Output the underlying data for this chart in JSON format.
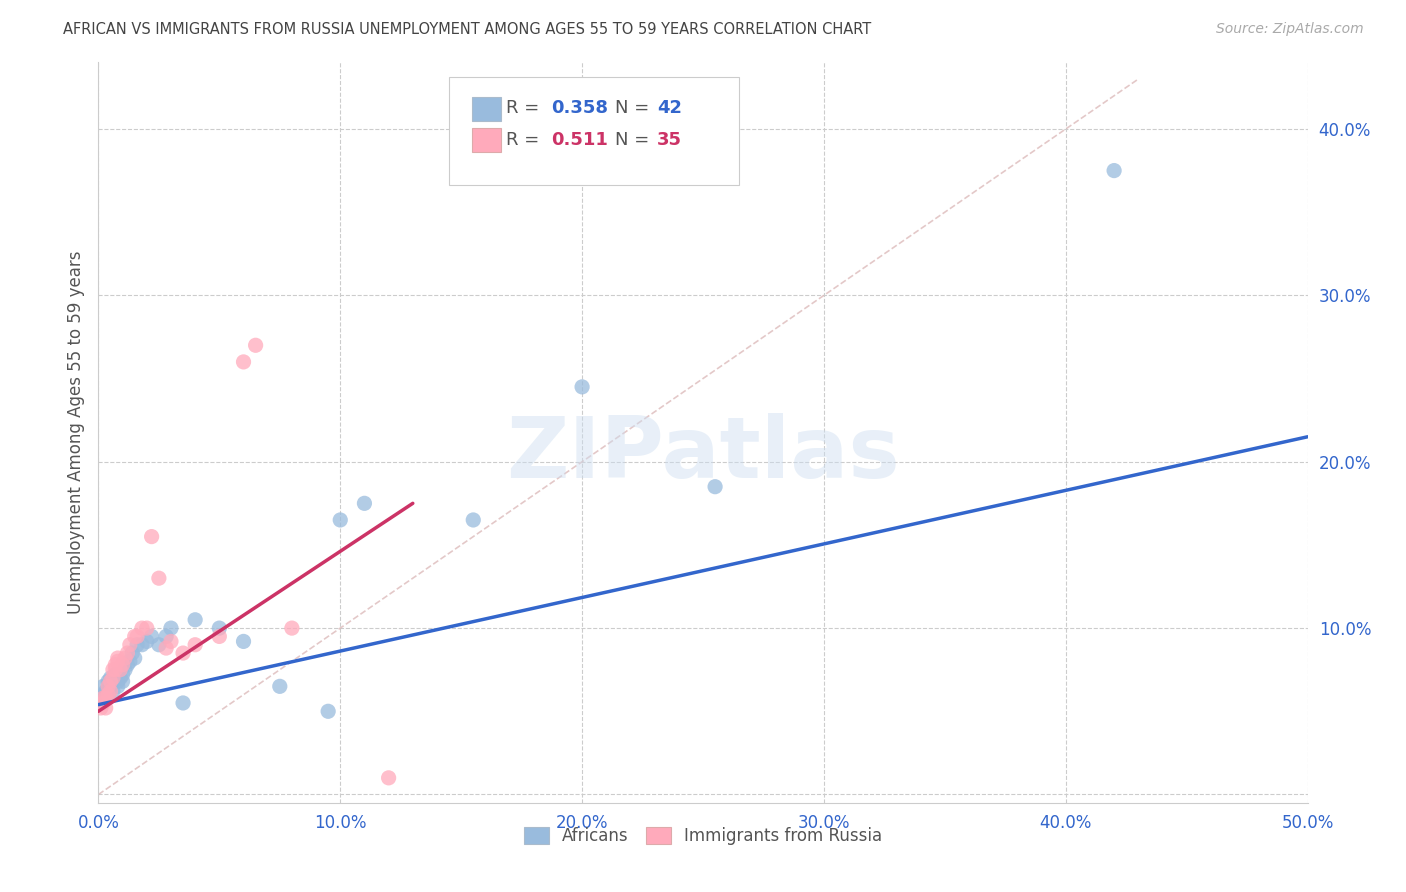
{
  "title": "AFRICAN VS IMMIGRANTS FROM RUSSIA UNEMPLOYMENT AMONG AGES 55 TO 59 YEARS CORRELATION CHART",
  "source": "Source: ZipAtlas.com",
  "ylabel": "Unemployment Among Ages 55 to 59 years",
  "xlim": [
    0.0,
    0.5
  ],
  "ylim": [
    -0.005,
    0.44
  ],
  "xticks": [
    0.0,
    0.1,
    0.2,
    0.3,
    0.4,
    0.5
  ],
  "yticks": [
    0.0,
    0.1,
    0.2,
    0.3,
    0.4
  ],
  "xticklabels": [
    "0.0%",
    "10.0%",
    "20.0%",
    "30.0%",
    "40.0%",
    "50.0%"
  ],
  "yticklabels": [
    "",
    "10.0%",
    "20.0%",
    "30.0%",
    "40.0%"
  ],
  "blue_scatter_color": "#99BBDD",
  "pink_scatter_color": "#FFAABB",
  "blue_line_color": "#3366CC",
  "pink_line_color": "#CC3366",
  "diag_color": "#DDBBBB",
  "watermark_text": "ZIPatlas",
  "background_color": "#FFFFFF",
  "grid_color": "#CCCCCC",
  "legend_r1": "0.358",
  "legend_n1": "42",
  "legend_r2": "0.511",
  "legend_n2": "35",
  "blue_line_x0": 0.0,
  "blue_line_y0": 0.054,
  "blue_line_x1": 0.5,
  "blue_line_y1": 0.215,
  "pink_line_x0": 0.0,
  "pink_line_y0": 0.05,
  "pink_line_x1": 0.13,
  "pink_line_y1": 0.175,
  "africans_x": [
    0.001,
    0.002,
    0.002,
    0.003,
    0.003,
    0.004,
    0.004,
    0.005,
    0.005,
    0.006,
    0.006,
    0.007,
    0.007,
    0.008,
    0.008,
    0.009,
    0.01,
    0.01,
    0.011,
    0.012,
    0.013,
    0.014,
    0.015,
    0.016,
    0.018,
    0.02,
    0.022,
    0.025,
    0.028,
    0.03,
    0.035,
    0.04,
    0.05,
    0.06,
    0.075,
    0.095,
    0.1,
    0.11,
    0.155,
    0.2,
    0.255,
    0.42
  ],
  "africans_y": [
    0.055,
    0.06,
    0.065,
    0.058,
    0.062,
    0.06,
    0.068,
    0.065,
    0.07,
    0.062,
    0.068,
    0.07,
    0.072,
    0.065,
    0.068,
    0.07,
    0.068,
    0.072,
    0.075,
    0.078,
    0.08,
    0.085,
    0.082,
    0.09,
    0.09,
    0.092,
    0.095,
    0.09,
    0.095,
    0.1,
    0.055,
    0.105,
    0.1,
    0.092,
    0.065,
    0.05,
    0.165,
    0.175,
    0.165,
    0.245,
    0.185,
    0.375
  ],
  "russia_x": [
    0.001,
    0.002,
    0.002,
    0.003,
    0.003,
    0.004,
    0.004,
    0.005,
    0.005,
    0.006,
    0.006,
    0.007,
    0.007,
    0.008,
    0.008,
    0.009,
    0.01,
    0.011,
    0.012,
    0.013,
    0.015,
    0.016,
    0.018,
    0.02,
    0.022,
    0.025,
    0.028,
    0.03,
    0.035,
    0.04,
    0.05,
    0.06,
    0.065,
    0.08,
    0.12
  ],
  "russia_y": [
    0.052,
    0.055,
    0.058,
    0.052,
    0.058,
    0.06,
    0.065,
    0.068,
    0.062,
    0.07,
    0.075,
    0.075,
    0.078,
    0.08,
    0.082,
    0.075,
    0.078,
    0.082,
    0.085,
    0.09,
    0.095,
    0.095,
    0.1,
    0.1,
    0.155,
    0.13,
    0.088,
    0.092,
    0.085,
    0.09,
    0.095,
    0.26,
    0.27,
    0.1,
    0.01
  ]
}
